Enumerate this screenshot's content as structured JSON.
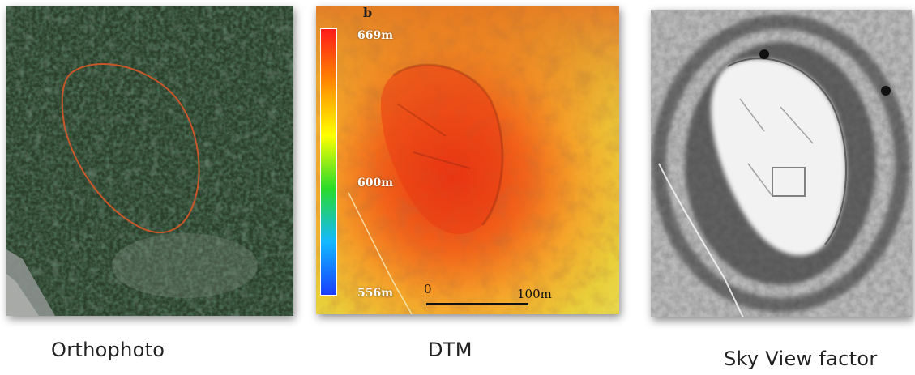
{
  "captions": {
    "orthophoto": "Orthophoto",
    "dtm": "DTM",
    "sky_view": "Sky View factor"
  },
  "dtm": {
    "panel_tag": "b",
    "elevation_max": "669m",
    "elevation_mid": "600m",
    "elevation_min": "556m",
    "scale_start": "0",
    "scale_end": "100m",
    "colorbar_colors": [
      "#ff1a1a",
      "#ff8a00",
      "#ffff00",
      "#2adb2a",
      "#12b9ff",
      "#1a3dff"
    ]
  },
  "orthophoto": {
    "outline_color": "#c8572a"
  }
}
